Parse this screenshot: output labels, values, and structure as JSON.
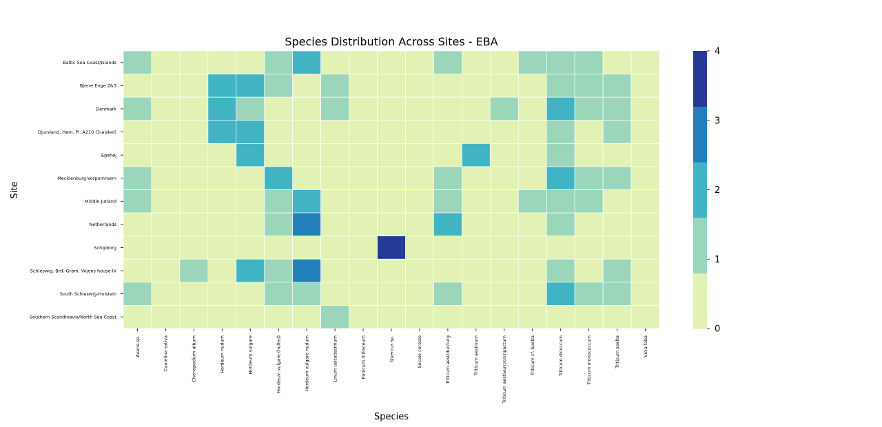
{
  "chart_data": {
    "type": "heatmap",
    "title": "Species Distribution Across Sites - EBA",
    "xlabel": "Species",
    "ylabel": "Site",
    "x_categories": [
      "Avena sp.",
      "Camelina sativa",
      "Chenopodium album",
      "Hordeum nudum",
      "Hordeum vulgare",
      "Hordeum vulgare (hulled)",
      "Hordeum vulgare nudum",
      "Linum usitatissimum",
      "Panicum miliaceum",
      "Quercus sp.",
      "Secale cereale",
      "Triticum aest/dur/turg",
      "Triticum aestivum",
      "Triticum aestivum/compactum",
      "Triticum cf. Spelta",
      "Triticum dicoccum",
      "Triticum monococcum",
      "Triticum spelta",
      "Vicia faba"
    ],
    "y_categories": [
      "Baltic Sea Coast/Islands",
      "Bjerre Enge 2&3",
      "Denmark",
      "Djursland, Hem. Pl. A210 (3-aisled)",
      "Egehøj",
      "Mecklenburg-Vorpommern",
      "Middle Jutland",
      "Netherlands",
      "Schipborg",
      "Schleswig, Brd. Gram, Vojens house IV",
      "South Schleswig-Holstein",
      "Southern Scandinavia/North Sea Coast"
    ],
    "values": [
      [
        1,
        0,
        0,
        0,
        0,
        1,
        2,
        0,
        0,
        0,
        0,
        1,
        0,
        0,
        1,
        1,
        1,
        0,
        0
      ],
      [
        0,
        0,
        0,
        2,
        2,
        1,
        0,
        1,
        0,
        0,
        0,
        0,
        0,
        0,
        0,
        1,
        1,
        1,
        0
      ],
      [
        1,
        0,
        0,
        2,
        1,
        0,
        0,
        1,
        0,
        0,
        0,
        0,
        0,
        1,
        0,
        2,
        1,
        1,
        0
      ],
      [
        0,
        0,
        0,
        2,
        2,
        0,
        0,
        0,
        0,
        0,
        0,
        0,
        0,
        0,
        0,
        1,
        0,
        1,
        0
      ],
      [
        0,
        0,
        0,
        0,
        2,
        0,
        0,
        0,
        0,
        0,
        0,
        0,
        2,
        0,
        0,
        1,
        0,
        0,
        0
      ],
      [
        1,
        0,
        0,
        0,
        0,
        2,
        0,
        0,
        0,
        0,
        0,
        1,
        0,
        0,
        0,
        2,
        1,
        1,
        0
      ],
      [
        1,
        0,
        0,
        0,
        0,
        1,
        2,
        0,
        0,
        0,
        0,
        1,
        0,
        0,
        1,
        1,
        1,
        0,
        0
      ],
      [
        0,
        0,
        0,
        0,
        0,
        1,
        3,
        0,
        0,
        0,
        0,
        2,
        0,
        0,
        0,
        1,
        0,
        0,
        0
      ],
      [
        0,
        0,
        0,
        0,
        0,
        0,
        0,
        0,
        0,
        4,
        0,
        0,
        0,
        0,
        0,
        0,
        0,
        0,
        0
      ],
      [
        0,
        0,
        1,
        0,
        2,
        1,
        3,
        0,
        0,
        0,
        0,
        0,
        0,
        0,
        0,
        1,
        0,
        1,
        0
      ],
      [
        1,
        0,
        0,
        0,
        0,
        1,
        1,
        0,
        0,
        0,
        0,
        1,
        0,
        0,
        0,
        2,
        1,
        1,
        0
      ],
      [
        0,
        0,
        0,
        0,
        0,
        0,
        0,
        1,
        0,
        0,
        0,
        0,
        0,
        0,
        0,
        0,
        0,
        0,
        0
      ]
    ],
    "vmin": 0,
    "vmax": 4,
    "colorbar_ticks": [
      0,
      1,
      2,
      3,
      4
    ],
    "colors": [
      "#e1f2b4",
      "#9bd6bb",
      "#41b4c4",
      "#2180b9",
      "#253997"
    ],
    "cell_border_color": "#ffffff"
  }
}
